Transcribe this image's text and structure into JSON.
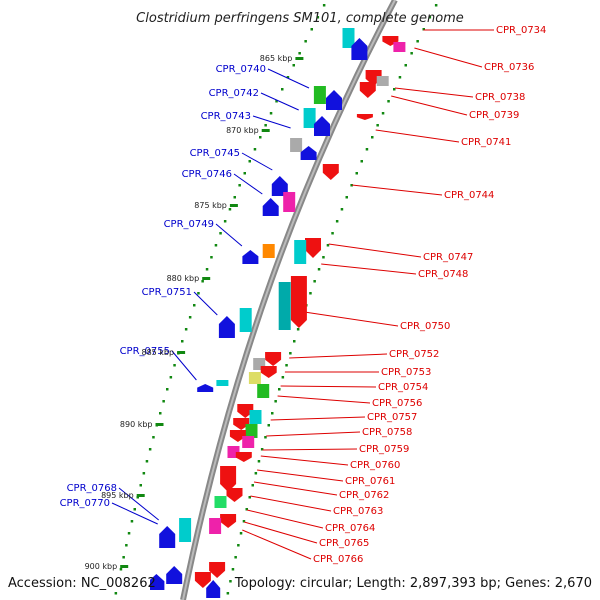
{
  "title": "Clostridium perfringens SM101, complete genome",
  "footer": {
    "accession": "Accession: NC_008262",
    "topology": "Topology: circular; Length: 2,897,393 bp; Genes: 2,670"
  },
  "colors": {
    "forward_label": "#0000cc",
    "reverse_label": "#dd0000",
    "backbone": "#888888",
    "tick_dots": "#118811"
  },
  "kbp_ticks": [
    "865 kbp",
    "870 kbp",
    "875 kbp",
    "880 kbp",
    "885 kbp",
    "890 kbp",
    "895 kbp",
    "900 kbp"
  ],
  "forward_genes": [
    "CPR_0740",
    "CPR_0742",
    "CPR_0743",
    "CPR_0745",
    "CPR_0746",
    "CPR_0749",
    "CPR_0751",
    "CPR_0755",
    "CPR_0768",
    "CPR_0770"
  ],
  "reverse_genes": [
    "CPR_0734",
    "CPR_0736",
    "CPR_0738",
    "CPR_0739",
    "CPR_0741",
    "CPR_0744",
    "CPR_0747",
    "CPR_0748",
    "CPR_0750",
    "CPR_0752",
    "CPR_0753",
    "CPR_0754",
    "CPR_0756",
    "CPR_0757",
    "CPR_0758",
    "CPR_0759",
    "CPR_0760",
    "CPR_0761",
    "CPR_0762",
    "CPR_0763",
    "CPR_0764",
    "CPR_0765",
    "CPR_0766"
  ]
}
